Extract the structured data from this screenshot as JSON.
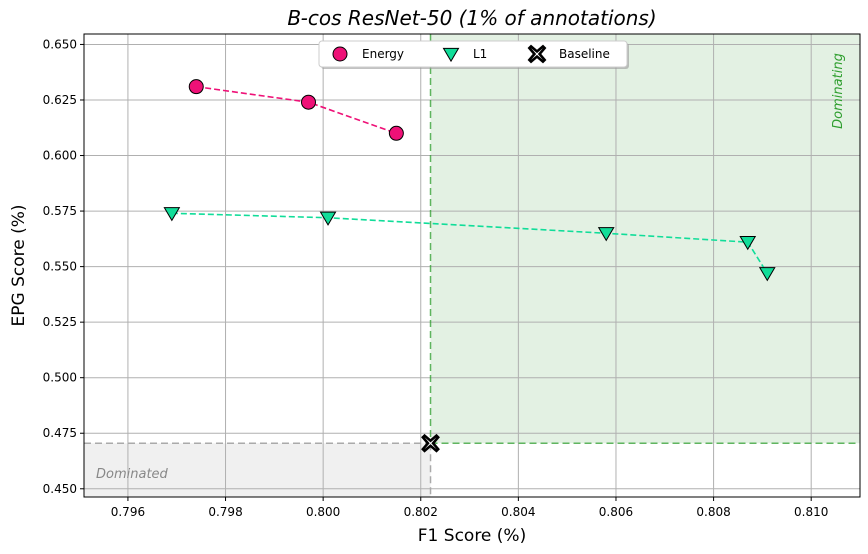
{
  "chart_data": {
    "type": "scatter",
    "title": "B-cos ResNet-50 (1% of annotations)",
    "xlabel": "F1 Score (%)",
    "ylabel": "EPG Score (%)",
    "xlim": [
      0.7951,
      0.811
    ],
    "ylim": [
      0.4463,
      0.6547
    ],
    "xticks": [
      0.796,
      0.798,
      0.8,
      0.802,
      0.804,
      0.806,
      0.808,
      0.81
    ],
    "xtick_labels": [
      "0.796",
      "0.798",
      "0.800",
      "0.802",
      "0.804",
      "0.806",
      "0.808",
      "0.810"
    ],
    "yticks": [
      0.45,
      0.475,
      0.5,
      0.525,
      0.55,
      0.575,
      0.6,
      0.625,
      0.65
    ],
    "ytick_labels": [
      "0.450",
      "0.475",
      "0.500",
      "0.525",
      "0.550",
      "0.575",
      "0.600",
      "0.625",
      "0.650"
    ],
    "grid": true,
    "legend_position": "top-center",
    "series": [
      {
        "name": "Energy",
        "marker": "circle",
        "color": "#ee1177",
        "connect": true,
        "x": [
          0.7974,
          0.7997,
          0.8015
        ],
        "y": [
          0.631,
          0.624,
          0.61
        ]
      },
      {
        "name": "L1",
        "marker": "triangle-down",
        "color": "#11dd99",
        "connect": true,
        "x": [
          0.7969,
          0.8001,
          0.8058,
          0.8087,
          0.8091
        ],
        "y": [
          0.574,
          0.572,
          0.565,
          0.561,
          0.547
        ]
      },
      {
        "name": "Baseline",
        "marker": "x-cross",
        "color": "#000000",
        "connect": false,
        "x": [
          0.8022
        ],
        "y": [
          0.4705
        ]
      }
    ],
    "regions": {
      "dominating": {
        "label": "Dominating",
        "color": "#2e9e2e",
        "fill": "#e3f1e3"
      },
      "dominated": {
        "label": "Dominated",
        "color": "#888888",
        "fill": "#f0f0f0"
      }
    }
  }
}
